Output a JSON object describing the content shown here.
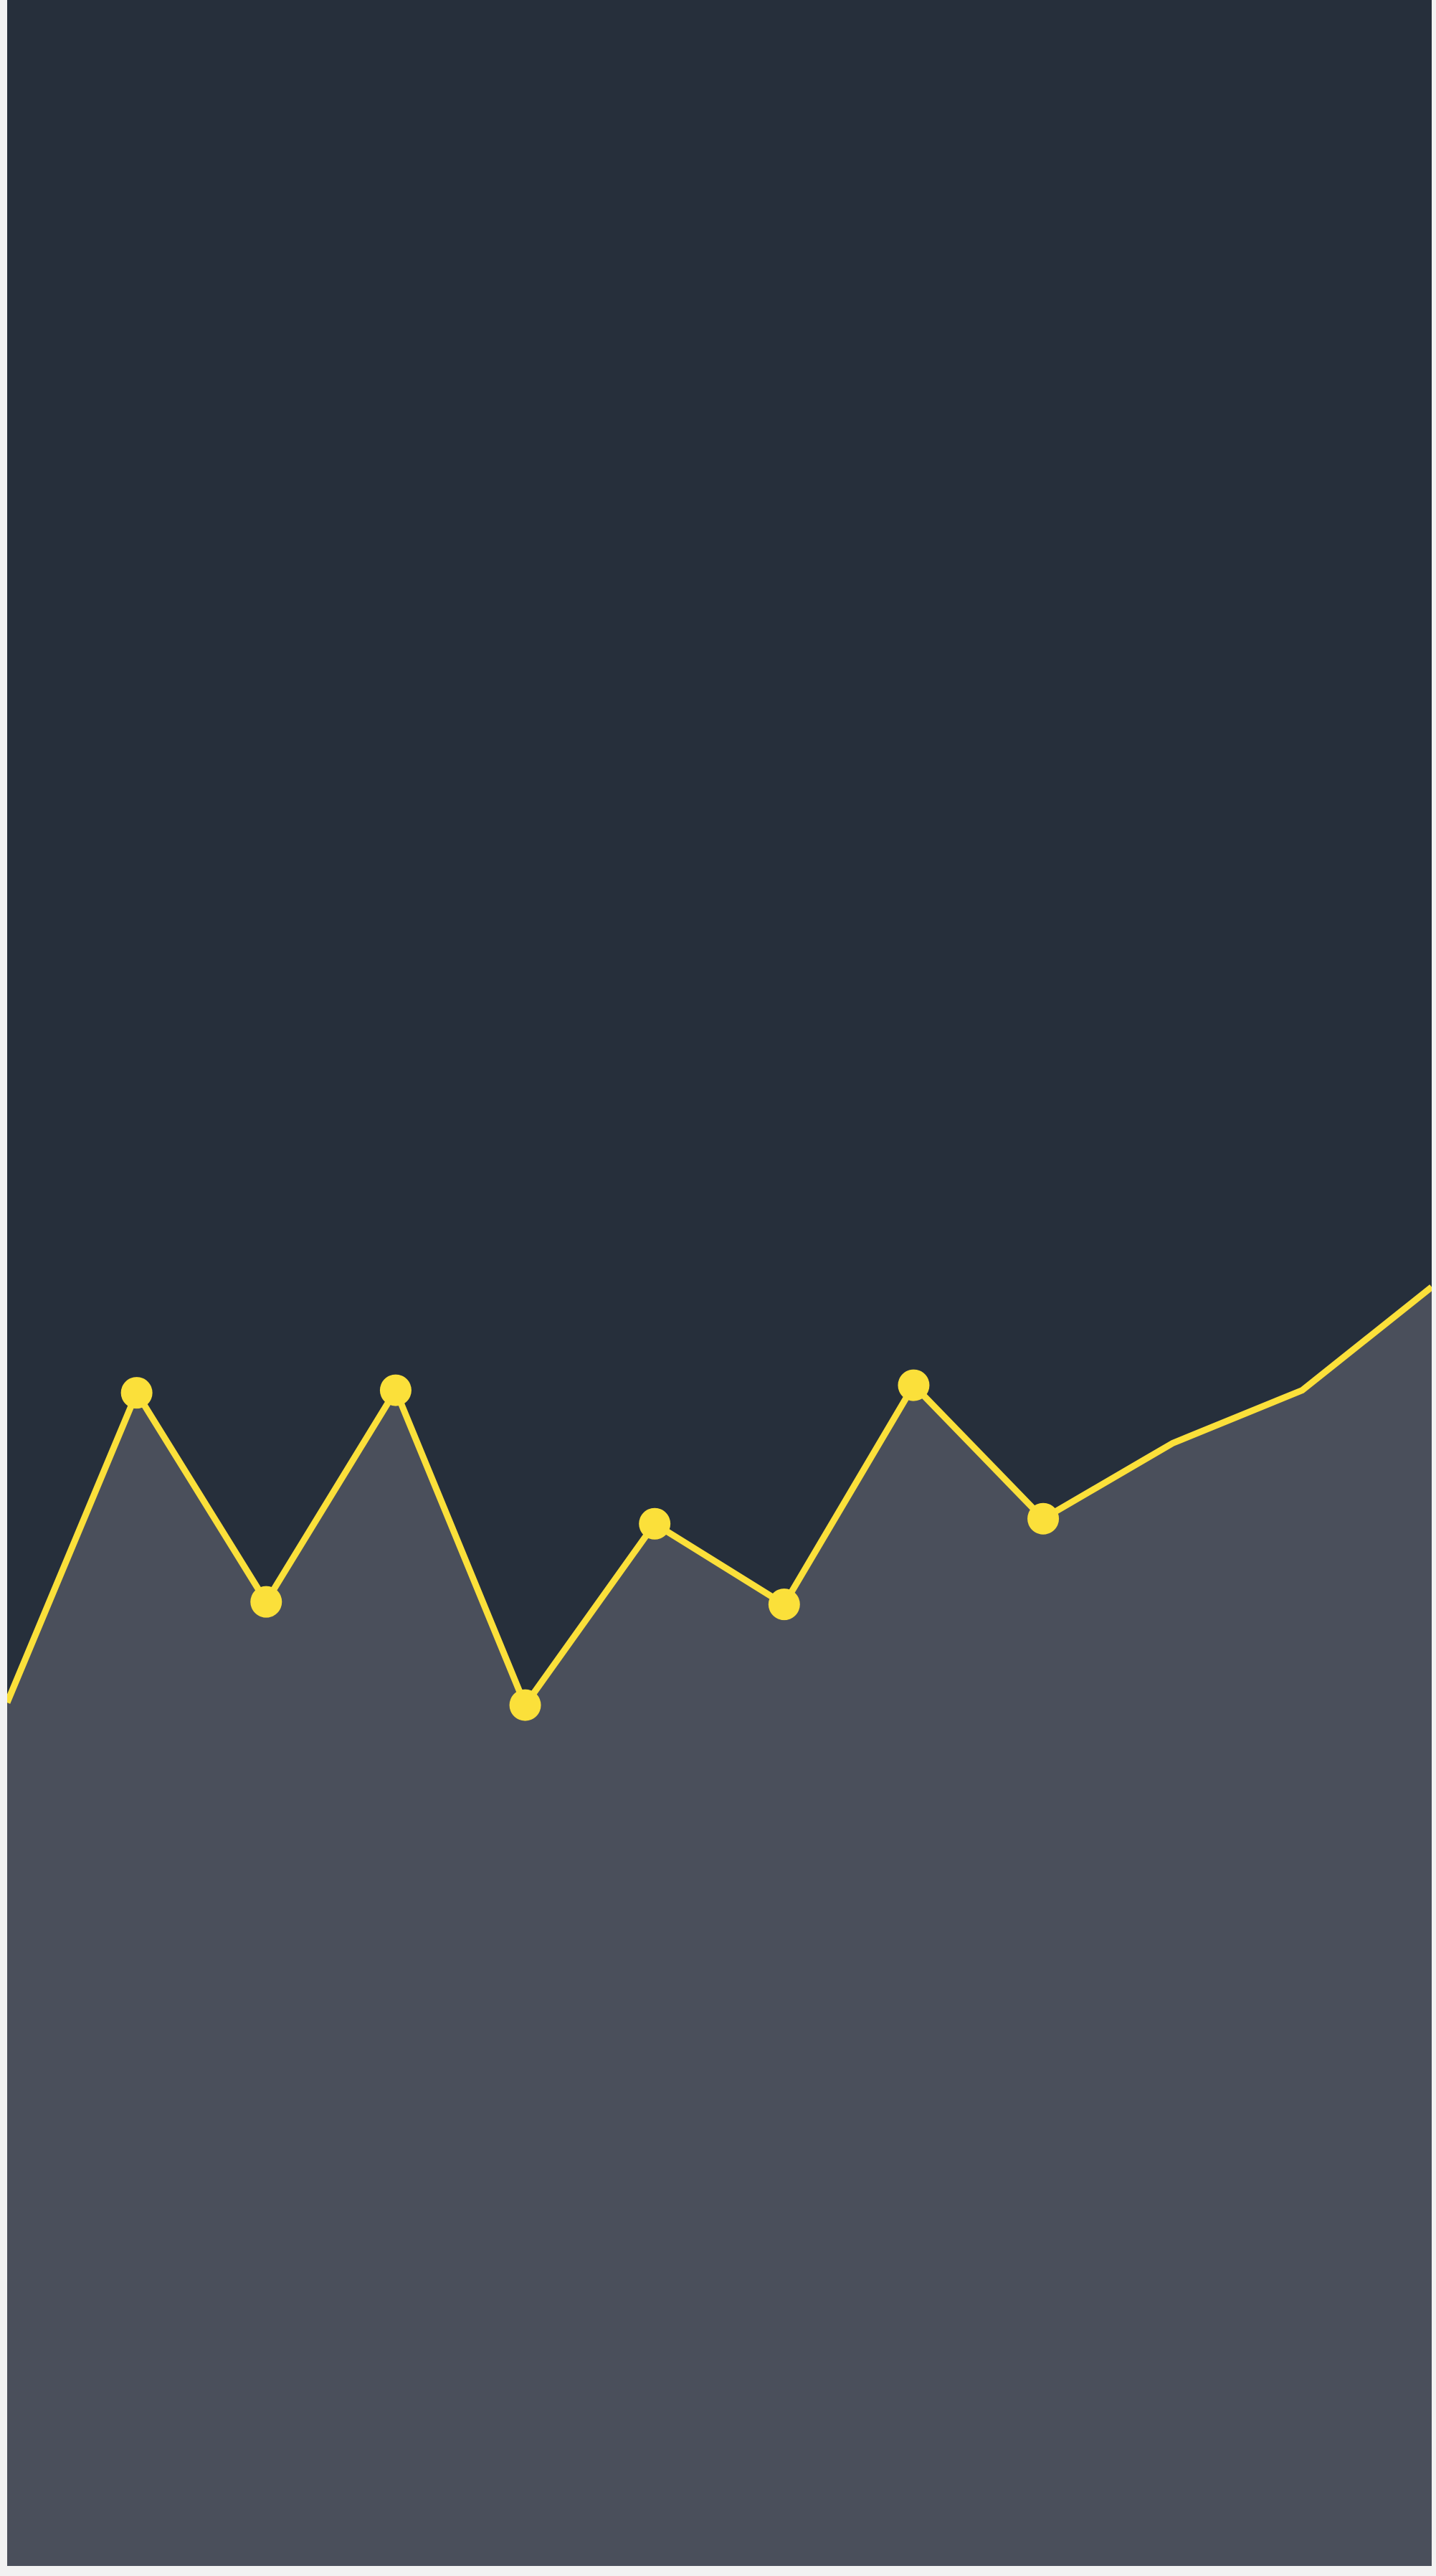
{
  "chart_data": {
    "type": "area",
    "title": "",
    "xlabel": "",
    "ylabel": "",
    "x": [
      0,
      1,
      2,
      3,
      4,
      5,
      6,
      7,
      8,
      9,
      10,
      11
    ],
    "series": [
      {
        "name": "",
        "values": [
          25.4,
          37.7,
          29.4,
          37.8,
          25.3,
          32.5,
          29.3,
          38.0,
          32.7,
          35.7,
          37.8,
          41.9
        ],
        "markers": [
          false,
          true,
          true,
          true,
          true,
          true,
          true,
          true,
          true,
          false,
          false,
          false
        ]
      }
    ],
    "xlim": [
      0,
      11
    ],
    "ylim": [
      -8.88,
      93.0
    ],
    "grid": false,
    "legend": "none",
    "colors": {
      "background": "#262f3b",
      "area_fill": "#4a4f5b",
      "line": "#fbe03a",
      "marker": "#fbe03a"
    }
  }
}
